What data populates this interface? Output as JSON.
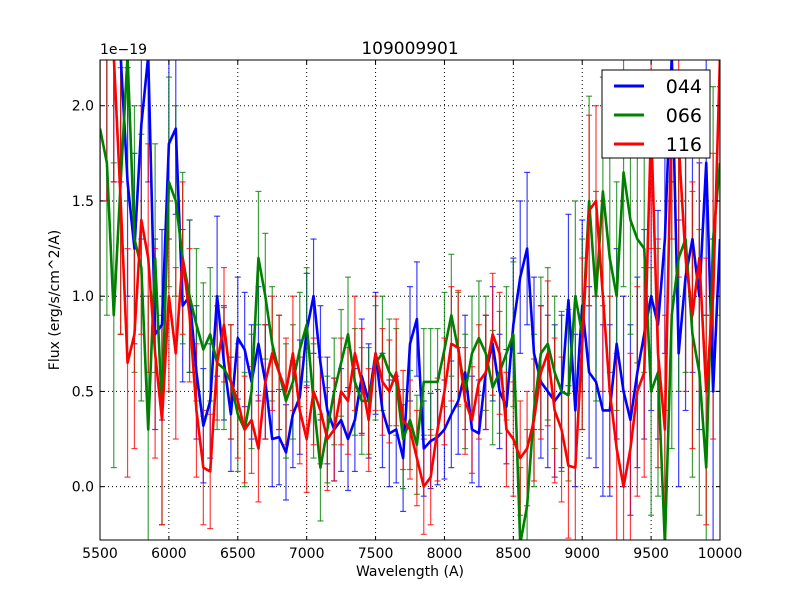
{
  "chart_data": {
    "type": "line",
    "title": "109009901",
    "xlabel": "Wavelength (A)",
    "ylabel": "Flux (erg/s/cm^2/A)",
    "y_scale_label": "1e−19",
    "xlim": [
      5500,
      10000
    ],
    "ylim": [
      -0.28,
      2.24
    ],
    "grid": true,
    "legend_position": "top-right",
    "x_ticks": [
      5500,
      6000,
      6500,
      7000,
      7500,
      8000,
      8500,
      9000,
      9500,
      10000
    ],
    "x_tick_labels": [
      "5500",
      "6000",
      "6500",
      "7000",
      "7500",
      "8000",
      "8500",
      "9000",
      "9500",
      "10000"
    ],
    "y_ticks": [
      0,
      0.5,
      1.0,
      1.5,
      2.0
    ],
    "y_tick_labels": [
      "0.0",
      "0.5",
      "1.0",
      "1.5",
      "2.0"
    ],
    "x_start": 5500,
    "x_step": 50,
    "series": [
      {
        "name": "044",
        "color": "#0000ff",
        "values": [
          2.3,
          2.3,
          2.3,
          2.3,
          1.6,
          1.25,
          1.9,
          2.3,
          0.8,
          0.85,
          1.8,
          1.88,
          0.95,
          1.0,
          0.6,
          0.32,
          0.45,
          1.0,
          0.65,
          0.38,
          0.78,
          0.72,
          0.55,
          0.75,
          0.55,
          0.25,
          0.26,
          0.18,
          0.38,
          0.47,
          0.82,
          1.0,
          0.65,
          0.4,
          0.3,
          0.35,
          0.25,
          0.35,
          0.58,
          0.45,
          0.7,
          0.4,
          0.28,
          0.3,
          0.15,
          0.75,
          0.88,
          0.2,
          0.24,
          0.26,
          0.3,
          0.38,
          0.45,
          0.6,
          0.3,
          0.28,
          0.6,
          0.75,
          0.5,
          0.42,
          0.85,
          1.1,
          1.25,
          0.7,
          0.55,
          0.5,
          0.45,
          0.5,
          0.98,
          0.4,
          0.95,
          0.6,
          0.55,
          0.4,
          0.4,
          0.75,
          0.5,
          0.35,
          0.6,
          0.8,
          1.0,
          0.85,
          1.3,
          2.3,
          0.7,
          1.1,
          1.3,
          1.0,
          1.7,
          0.5,
          1.3
        ],
        "errors": [
          0.8,
          0.8,
          0.7,
          0.7,
          0.6,
          0.5,
          0.6,
          0.7,
          0.5,
          0.5,
          0.5,
          0.45,
          0.4,
          0.4,
          0.35,
          0.3,
          0.3,
          0.42,
          0.3,
          0.3,
          0.32,
          0.3,
          0.3,
          0.3,
          0.3,
          0.25,
          0.25,
          0.25,
          0.28,
          0.3,
          0.3,
          0.3,
          0.3,
          0.28,
          0.27,
          0.27,
          0.27,
          0.27,
          0.3,
          0.3,
          0.32,
          0.3,
          0.28,
          0.28,
          0.28,
          0.3,
          0.3,
          0.25,
          0.25,
          0.25,
          0.26,
          0.28,
          0.28,
          0.3,
          0.28,
          0.28,
          0.3,
          0.3,
          0.3,
          0.3,
          0.35,
          0.4,
          0.4,
          0.4,
          0.4,
          0.4,
          0.4,
          0.4,
          0.45,
          0.4,
          0.45,
          0.45,
          0.45,
          0.45,
          0.45,
          0.5,
          0.5,
          0.5,
          0.5,
          0.55,
          0.6,
          0.6,
          0.6,
          0.7,
          0.7,
          0.7,
          0.7,
          0.7,
          0.8,
          0.8,
          0.8
        ]
      },
      {
        "name": "066",
        "color": "#008000",
        "values": [
          1.88,
          1.7,
          0.9,
          1.6,
          2.3,
          1.3,
          1.15,
          0.3,
          1.2,
          0.4,
          1.6,
          1.5,
          1.2,
          1.0,
          0.85,
          0.72,
          0.8,
          0.65,
          0.62,
          0.55,
          0.38,
          0.3,
          0.5,
          1.2,
          1.0,
          0.75,
          0.6,
          0.45,
          0.55,
          0.72,
          0.85,
          0.45,
          0.1,
          0.3,
          0.5,
          0.65,
          0.8,
          0.55,
          0.45,
          0.45,
          0.65,
          0.7,
          0.6,
          0.55,
          0.25,
          0.35,
          0.22,
          0.55,
          0.55,
          0.55,
          0.72,
          0.9,
          0.72,
          0.5,
          0.7,
          0.78,
          0.7,
          0.52,
          0.6,
          0.7,
          0.8,
          -0.3,
          -0.1,
          0.4,
          0.7,
          0.75,
          0.6,
          0.5,
          0.48,
          1.0,
          0.8,
          1.5,
          1.0,
          1.55,
          1.2,
          1.0,
          1.65,
          1.4,
          1.3,
          1.25,
          0.5,
          0.6,
          -0.3,
          0.9,
          1.2,
          1.3,
          0.8,
          0.6,
          0.1,
          1.3,
          1.7
        ],
        "errors": [
          0.9,
          0.8,
          0.8,
          0.8,
          0.8,
          0.7,
          0.7,
          0.7,
          0.6,
          0.6,
          0.55,
          0.5,
          0.45,
          0.4,
          0.4,
          0.35,
          0.35,
          0.35,
          0.32,
          0.3,
          0.3,
          0.3,
          0.3,
          0.35,
          0.33,
          0.3,
          0.3,
          0.3,
          0.3,
          0.3,
          0.3,
          0.3,
          0.28,
          0.28,
          0.28,
          0.28,
          0.3,
          0.28,
          0.28,
          0.28,
          0.3,
          0.3,
          0.28,
          0.28,
          0.26,
          0.26,
          0.26,
          0.28,
          0.28,
          0.28,
          0.3,
          0.32,
          0.3,
          0.3,
          0.3,
          0.3,
          0.3,
          0.3,
          0.32,
          0.35,
          0.38,
          0.4,
          0.4,
          0.4,
          0.4,
          0.4,
          0.4,
          0.42,
          0.45,
          0.5,
          0.5,
          0.55,
          0.55,
          0.6,
          0.6,
          0.6,
          0.6,
          0.6,
          0.65,
          0.65,
          0.65,
          0.65,
          0.7,
          0.7,
          0.7,
          0.7,
          0.75,
          0.75,
          0.8,
          0.8,
          0.8
        ]
      },
      {
        "name": "116",
        "color": "#ff0000",
        "values": [
          2.3,
          2.3,
          2.3,
          1.5,
          0.65,
          0.8,
          1.4,
          1.2,
          0.7,
          0.35,
          1.0,
          0.7,
          1.2,
          0.9,
          0.4,
          0.1,
          0.08,
          0.65,
          0.85,
          0.55,
          0.45,
          0.3,
          0.35,
          0.2,
          0.55,
          0.7,
          0.6,
          0.5,
          0.7,
          0.4,
          0.25,
          0.5,
          0.4,
          0.25,
          0.3,
          0.5,
          0.45,
          0.7,
          0.55,
          0.35,
          0.7,
          0.55,
          0.5,
          0.6,
          0.35,
          0.3,
          0.15,
          0.0,
          0.05,
          0.3,
          0.5,
          0.75,
          0.73,
          0.45,
          0.35,
          0.55,
          0.6,
          0.8,
          0.7,
          0.3,
          0.25,
          0.15,
          0.2,
          0.35,
          0.6,
          0.7,
          0.4,
          0.3,
          0.11,
          0.1,
          0.75,
          1.45,
          1.5,
          1.0,
          0.5,
          0.2,
          0.0,
          0.2,
          0.5,
          0.6,
          1.9,
          0.7,
          0.3,
          2.0,
          1.8,
          1.2,
          0.9,
          1.2,
          0.5,
          1.0,
          2.3
        ],
        "errors": [
          0.8,
          0.8,
          0.7,
          0.7,
          0.6,
          0.6,
          0.6,
          0.6,
          0.55,
          0.55,
          0.5,
          0.45,
          0.4,
          0.35,
          0.35,
          0.3,
          0.3,
          0.3,
          0.3,
          0.3,
          0.3,
          0.28,
          0.28,
          0.28,
          0.3,
          0.3,
          0.3,
          0.28,
          0.3,
          0.28,
          0.28,
          0.28,
          0.28,
          0.27,
          0.27,
          0.28,
          0.28,
          0.3,
          0.28,
          0.27,
          0.3,
          0.28,
          0.27,
          0.28,
          0.26,
          0.26,
          0.25,
          0.25,
          0.25,
          0.27,
          0.28,
          0.3,
          0.3,
          0.28,
          0.28,
          0.3,
          0.3,
          0.32,
          0.32,
          0.3,
          0.3,
          0.3,
          0.3,
          0.32,
          0.35,
          0.38,
          0.38,
          0.38,
          0.38,
          0.4,
          0.45,
          0.5,
          0.5,
          0.5,
          0.5,
          0.5,
          0.5,
          0.5,
          0.55,
          0.55,
          0.65,
          0.6,
          0.6,
          0.7,
          0.7,
          0.7,
          0.7,
          0.7,
          0.7,
          0.75,
          0.8
        ]
      }
    ]
  }
}
